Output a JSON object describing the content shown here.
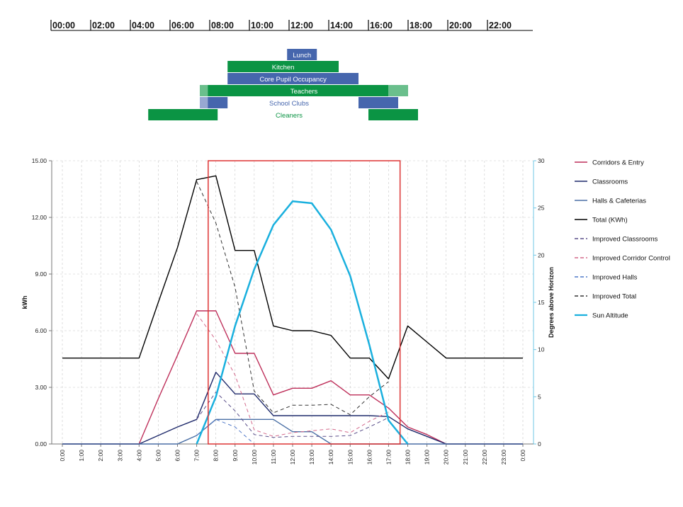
{
  "timeline": {
    "hours": [
      "00:00",
      "02:00",
      "04:00",
      "06:00",
      "08:00",
      "10:00",
      "12:00",
      "14:00",
      "16:00",
      "18:00",
      "20:00",
      "22:00"
    ]
  },
  "schedule": [
    {
      "label": "Lunch",
      "label_color": "#ffffff",
      "segments": [
        {
          "start": 11.9,
          "end": 13.4,
          "color": "#4666ad"
        }
      ]
    },
    {
      "label": "Kitchen",
      "label_color": "#ffffff",
      "segments": [
        {
          "start": 8.9,
          "end": 14.5,
          "color": "#0b9444"
        }
      ]
    },
    {
      "label": "Core Pupil Occupancy",
      "label_color": "#ffffff",
      "segments": [
        {
          "start": 8.9,
          "end": 15.5,
          "color": "#4666ad"
        }
      ]
    },
    {
      "label": "Teachers",
      "label_color": "#ffffff",
      "segments": [
        {
          "start": 7.5,
          "end": 7.9,
          "color": "#6abf8c"
        },
        {
          "start": 7.9,
          "end": 17.0,
          "color": "#0b9444"
        },
        {
          "start": 17.0,
          "end": 18.0,
          "color": "#6abf8c"
        }
      ]
    },
    {
      "label": "School Clubs",
      "label_color": "#4666ad",
      "segments": [
        {
          "start": 7.5,
          "end": 7.9,
          "color": "#97a8d2"
        },
        {
          "start": 7.9,
          "end": 8.9,
          "color": "#4666ad"
        },
        {
          "start": 15.5,
          "end": 17.5,
          "color": "#4666ad"
        }
      ]
    },
    {
      "label": "Cleaners",
      "label_color": "#0b9444",
      "segments": [
        {
          "start": 4.9,
          "end": 8.4,
          "color": "#0b9444"
        },
        {
          "start": 16.0,
          "end": 18.5,
          "color": "#0b9444"
        }
      ]
    }
  ],
  "chart_data": {
    "type": "line",
    "categories": [
      "0:00",
      "1:00",
      "2:00",
      "3:00",
      "4:00",
      "5:00",
      "6:00",
      "7:00",
      "8:00",
      "9:00",
      "10:00",
      "11:00",
      "12:00",
      "13:00",
      "14:00",
      "15:00",
      "16:00",
      "17:00",
      "18:00",
      "19:00",
      "20:00",
      "21:00",
      "22:00",
      "23:00",
      "0:00"
    ],
    "x_values": [
      0,
      1,
      2,
      3,
      4,
      5,
      6,
      7,
      7.6,
      8,
      9,
      9.6,
      10,
      11,
      12,
      13,
      14,
      15,
      16,
      17,
      18,
      19,
      20,
      21,
      22,
      23,
      24
    ],
    "ylabel": "kWh",
    "y2label": "Degrees above Horizon",
    "ylim": [
      0,
      15
    ],
    "y2lim": [
      0,
      30
    ],
    "yticks": [
      "0.00",
      "3.00",
      "6.00",
      "9.00",
      "12.00",
      "15.00"
    ],
    "y2ticks": [
      "0",
      "5",
      "10",
      "15",
      "20",
      "25",
      "30"
    ],
    "grid": true,
    "legend_position": "right",
    "highlight_window": {
      "start": 7.6,
      "end": 17.6,
      "color": "#dd3333"
    },
    "series": [
      {
        "name": "Corridors & Entry",
        "color": "#be2f5a",
        "dash": false,
        "axis": "left",
        "points": [
          [
            0,
            0
          ],
          [
            1,
            0
          ],
          [
            2,
            0
          ],
          [
            3,
            0
          ],
          [
            4,
            0
          ],
          [
            5,
            2.4
          ],
          [
            6,
            4.7
          ],
          [
            7,
            7.05
          ],
          [
            8,
            7.05
          ],
          [
            9,
            4.8
          ],
          [
            10,
            4.8
          ],
          [
            11,
            2.6
          ],
          [
            12,
            2.95
          ],
          [
            13,
            2.95
          ],
          [
            14,
            3.35
          ],
          [
            15,
            2.6
          ],
          [
            16,
            2.6
          ],
          [
            17,
            1.9
          ],
          [
            18,
            0.9
          ],
          [
            19,
            0.5
          ],
          [
            20,
            0
          ],
          [
            21,
            0
          ],
          [
            22,
            0
          ],
          [
            23,
            0
          ],
          [
            24,
            0
          ]
        ]
      },
      {
        "name": "Classrooms",
        "color": "#1f2a6b",
        "dash": false,
        "axis": "left",
        "points": [
          [
            0,
            0
          ],
          [
            1,
            0
          ],
          [
            2,
            0
          ],
          [
            3,
            0
          ],
          [
            4,
            0
          ],
          [
            5,
            0.45
          ],
          [
            6,
            0.9
          ],
          [
            7,
            1.3
          ],
          [
            8,
            3.8
          ],
          [
            9,
            2.65
          ],
          [
            10,
            2.65
          ],
          [
            11,
            1.5
          ],
          [
            12,
            1.5
          ],
          [
            13,
            1.5
          ],
          [
            14,
            1.5
          ],
          [
            15,
            1.5
          ],
          [
            16,
            1.5
          ],
          [
            17,
            1.45
          ],
          [
            18,
            0.8
          ],
          [
            19,
            0.4
          ],
          [
            20,
            0
          ],
          [
            21,
            0
          ],
          [
            22,
            0
          ],
          [
            23,
            0
          ],
          [
            24,
            0
          ]
        ]
      },
      {
        "name": "Halls & Cafeterias",
        "color": "#4a6fa5",
        "dash": false,
        "axis": "left",
        "points": [
          [
            0,
            0
          ],
          [
            1,
            0
          ],
          [
            2,
            0
          ],
          [
            3,
            0
          ],
          [
            4,
            0
          ],
          [
            5,
            0
          ],
          [
            6,
            0
          ],
          [
            7,
            0.45
          ],
          [
            8,
            1.3
          ],
          [
            9,
            1.3
          ],
          [
            10,
            1.3
          ],
          [
            11,
            1.3
          ],
          [
            12,
            0.65
          ],
          [
            13,
            0.65
          ],
          [
            14,
            0
          ],
          [
            15,
            0
          ],
          [
            16,
            0
          ],
          [
            17,
            0
          ],
          [
            18,
            0
          ],
          [
            19,
            0
          ],
          [
            20,
            0
          ],
          [
            21,
            0
          ],
          [
            22,
            0
          ],
          [
            23,
            0
          ],
          [
            24,
            0
          ]
        ]
      },
      {
        "name": "Total (KWh)",
        "color": "#000000",
        "dash": false,
        "axis": "left",
        "points": [
          [
            0,
            4.55
          ],
          [
            1,
            4.55
          ],
          [
            2,
            4.55
          ],
          [
            3,
            4.55
          ],
          [
            4,
            4.55
          ],
          [
            5,
            7.5
          ],
          [
            6,
            10.4
          ],
          [
            7,
            14.0
          ],
          [
            8,
            14.2
          ],
          [
            9,
            10.25
          ],
          [
            10,
            10.25
          ],
          [
            11,
            6.25
          ],
          [
            12,
            6.0
          ],
          [
            13,
            6.0
          ],
          [
            14,
            5.75
          ],
          [
            15,
            4.55
          ],
          [
            16,
            4.55
          ],
          [
            17,
            3.45
          ],
          [
            18,
            6.25
          ],
          [
            19,
            5.4
          ],
          [
            20,
            4.55
          ],
          [
            21,
            4.55
          ],
          [
            22,
            4.55
          ],
          [
            23,
            4.55
          ],
          [
            24,
            4.55
          ]
        ]
      },
      {
        "name": "Improved Classrooms",
        "color": "#5a4f8a",
        "dash": true,
        "axis": "left",
        "points": [
          [
            7,
            1.3
          ],
          [
            8,
            2.75
          ],
          [
            9,
            1.75
          ],
          [
            10,
            0.5
          ],
          [
            11,
            0.35
          ],
          [
            12,
            0.4
          ],
          [
            13,
            0.4
          ],
          [
            14,
            0.4
          ],
          [
            15,
            0.45
          ],
          [
            16,
            0.9
          ],
          [
            17,
            1.4
          ]
        ]
      },
      {
        "name": "Improved Corridor Control",
        "color": "#d36a8c",
        "dash": true,
        "axis": "left",
        "points": [
          [
            7,
            6.9
          ],
          [
            8,
            5.5
          ],
          [
            9,
            3.65
          ],
          [
            10,
            0.75
          ],
          [
            11,
            0.4
          ],
          [
            12,
            0.6
          ],
          [
            13,
            0.7
          ],
          [
            14,
            0.8
          ],
          [
            15,
            0.6
          ],
          [
            16,
            1.2
          ],
          [
            17,
            1.7
          ]
        ]
      },
      {
        "name": "Improved Halls",
        "color": "#4f78c8",
        "dash": true,
        "axis": "left",
        "points": [
          [
            7,
            0.45
          ],
          [
            8,
            1.3
          ],
          [
            9,
            0.9
          ],
          [
            10,
            0
          ]
        ]
      },
      {
        "name": "Improved Total",
        "color": "#333333",
        "dash": true,
        "axis": "left",
        "points": [
          [
            7,
            13.9
          ],
          [
            8,
            11.7
          ],
          [
            9,
            8.3
          ],
          [
            10,
            2.8
          ],
          [
            11,
            1.65
          ],
          [
            12,
            2.05
          ],
          [
            13,
            2.05
          ],
          [
            14,
            2.1
          ],
          [
            15,
            1.55
          ],
          [
            16,
            2.5
          ],
          [
            17,
            3.3
          ]
        ]
      },
      {
        "name": "Sun Altitude",
        "color": "#1ab0de",
        "dash": false,
        "axis": "right",
        "width": 2.5,
        "points": [
          [
            7,
            0
          ],
          [
            8,
            5.0
          ],
          [
            9,
            12.5
          ],
          [
            10,
            18.5
          ],
          [
            11,
            23.2
          ],
          [
            12,
            25.7
          ],
          [
            13,
            25.5
          ],
          [
            14,
            22.7
          ],
          [
            15,
            17.8
          ],
          [
            16,
            10.5
          ],
          [
            17,
            2.5
          ],
          [
            18,
            0
          ]
        ]
      }
    ]
  }
}
